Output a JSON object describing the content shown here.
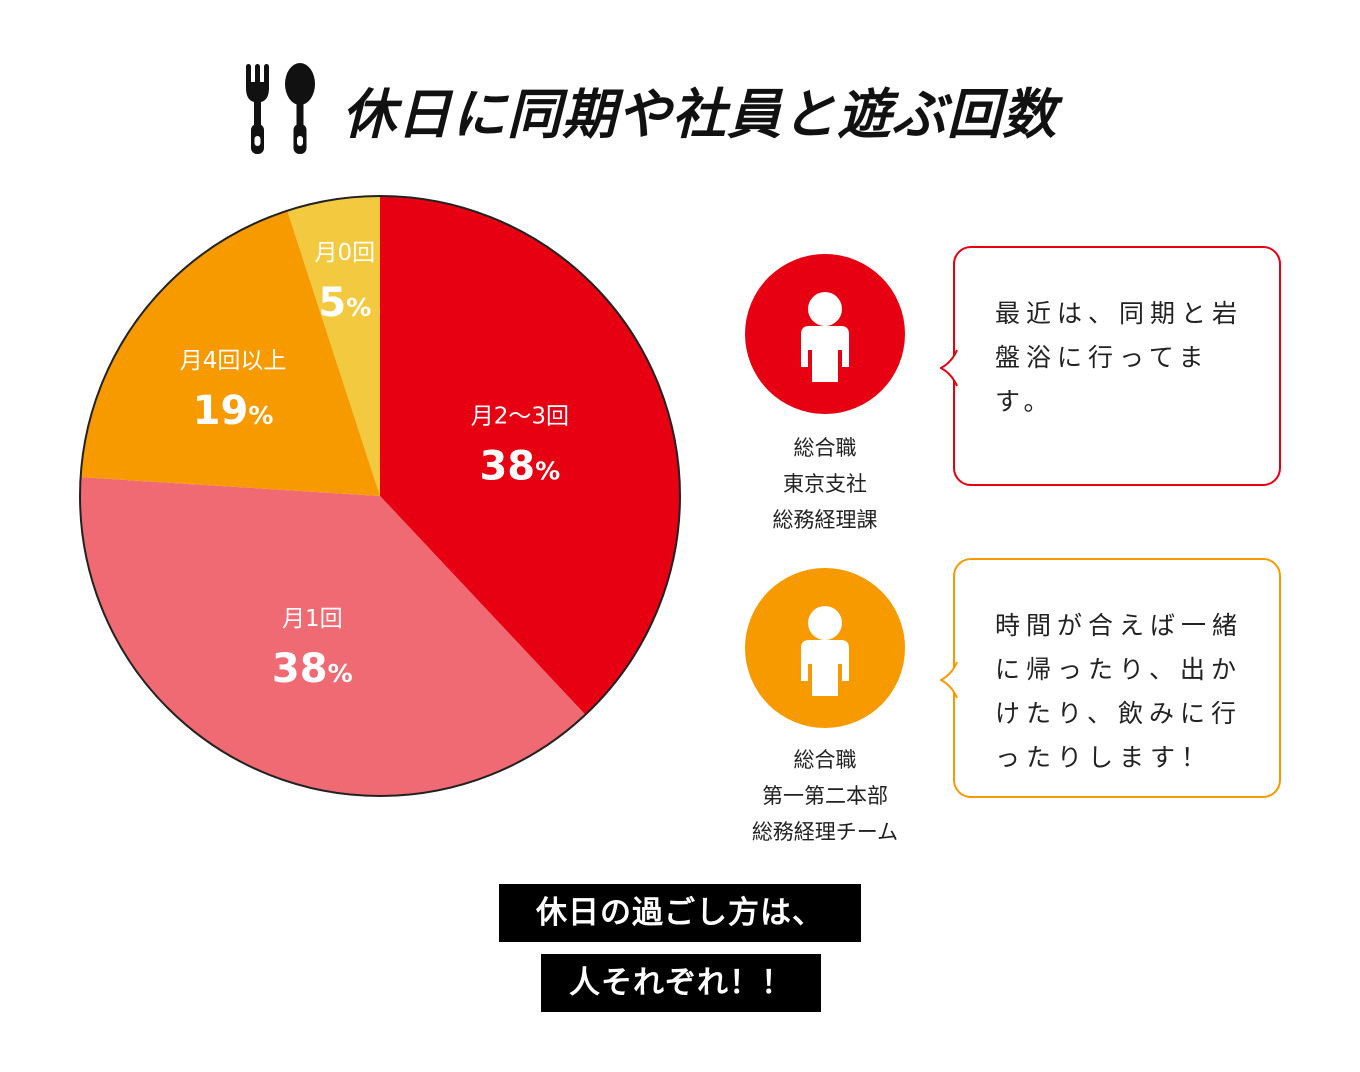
{
  "header": {
    "title": "休日に同期や社員と遊ぶ回数",
    "icon": "fork-and-spoon-icon"
  },
  "chart_data": {
    "type": "pie",
    "slices": [
      {
        "label": "月2〜3回",
        "value": 38,
        "display": "38",
        "color": "#E60012"
      },
      {
        "label": "月1回",
        "value": 38,
        "display": "38",
        "color": "#F06A73"
      },
      {
        "label": "月4回以上",
        "value": 19,
        "display": "19",
        "color": "#F79A00"
      },
      {
        "label": "月0回",
        "value": 5,
        "display": "5",
        "color": "#F3C93F"
      }
    ],
    "unit": "%",
    "start": "12 o'clock",
    "direction": "clockwise"
  },
  "testimonials": [
    {
      "role_lines": [
        "総合職",
        "東京支社",
        "総務経理課"
      ],
      "comment": "最近は、同期と岩盤浴に行ってます。",
      "color": "#E60012",
      "icon": "person-icon"
    },
    {
      "role_lines": [
        "総合職",
        "第一第二本部",
        "総務経理チーム"
      ],
      "comment": "時間が合えば一緒に帰ったり、出かけたり、飲みに行ったりします！",
      "color": "#F79A00",
      "icon": "person-icon"
    }
  ],
  "caption": {
    "line1": "休日の過ごし方は、",
    "line2": "人それぞれ！！"
  }
}
